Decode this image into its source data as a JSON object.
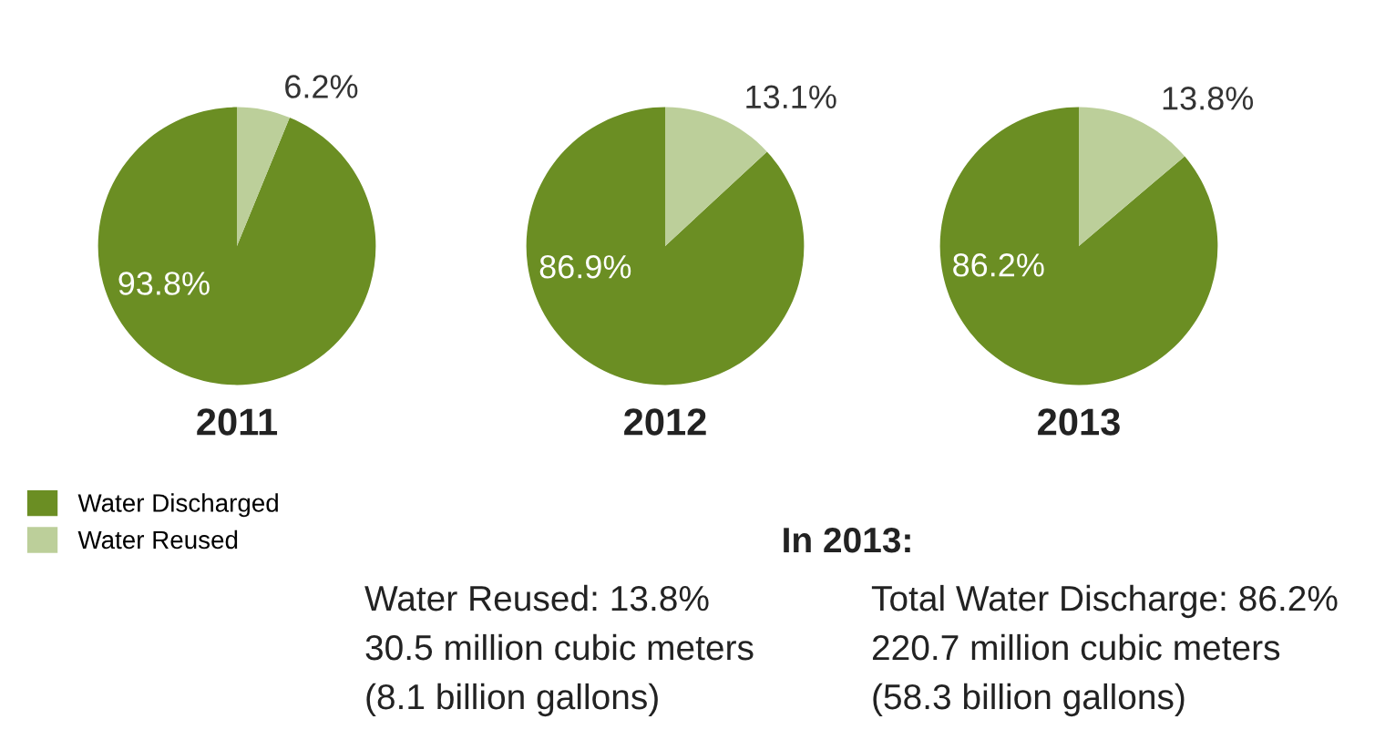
{
  "chart_data": [
    {
      "type": "pie",
      "title": "2011",
      "categories": [
        "Water Discharged",
        "Water Reused"
      ],
      "values": [
        93.8,
        6.2
      ],
      "colors": [
        "#6b8e23",
        "#bccf9a"
      ],
      "value_labels": [
        "93.8%",
        "6.2%"
      ],
      "legend": "bottom left"
    },
    {
      "type": "pie",
      "title": "2012",
      "categories": [
        null,
        null
      ],
      "values": [
        86.9,
        13.1
      ],
      "colors": [
        "#6b8e23",
        "#bccf9a"
      ],
      "value_labels": [
        "86.9%",
        "13.1%"
      ]
    },
    {
      "type": "pie",
      "title": "2013",
      "categories": [
        null,
        null
      ],
      "values": [
        86.2,
        13.8
      ],
      "colors": [
        "#6b8e23",
        "#bccf9a"
      ],
      "value_labels": [
        "86.2%",
        "13.8%"
      ]
    },
    {
      "type": "other",
      "title": "In 2013:",
      "annotations": [
        "Water Reused: 13.8%",
        "30.5 million cubic meters",
        "(8.1 billion gallons)",
        "Total Water Discharge: 86.2%",
        "220.7 million cubic meters",
        "(58.3 billion gallons)"
      ]
    }
  ]
}
